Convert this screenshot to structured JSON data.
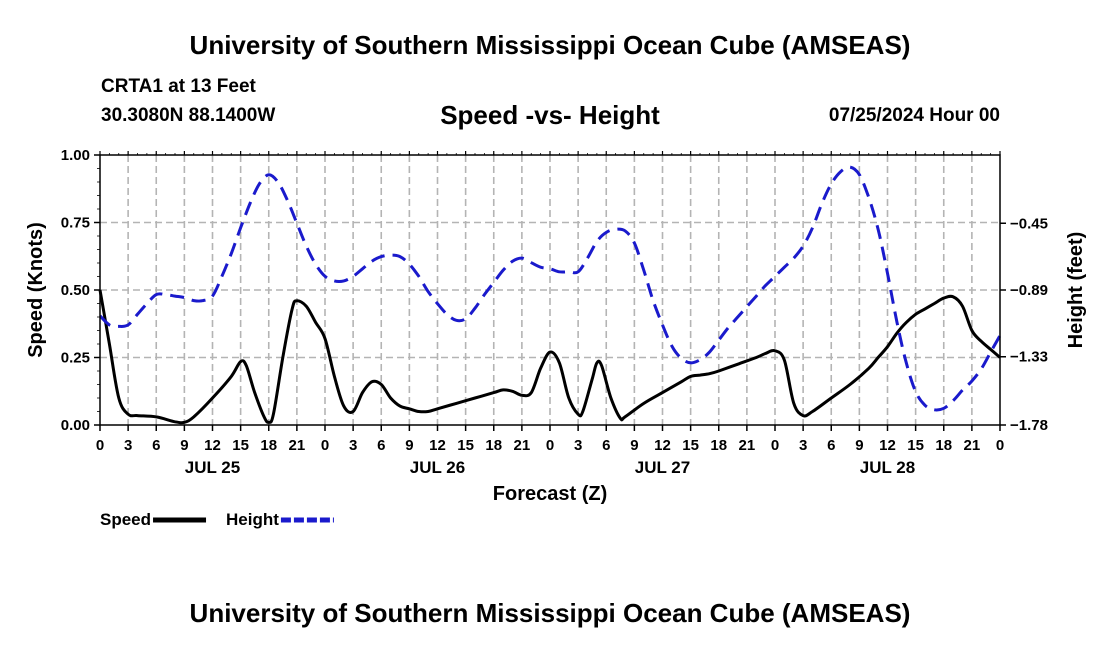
{
  "header": {
    "title": "University of Southern Mississippi Ocean Cube (AMSEAS)",
    "station": "CRTA1 at 13 Feet",
    "latlon": "30.3080N  88.1400W",
    "subtitle": "Speed -vs- Height",
    "datetime": "07/25/2024 Hour 00"
  },
  "footer": {
    "title": "University of Southern Mississippi Ocean Cube (AMSEAS)"
  },
  "chart_data": {
    "type": "line",
    "title": "Speed -vs- Height",
    "xlabel": "Forecast (Z)",
    "ylabel_left": "Speed (Knots)",
    "ylabel_right": "Height (feet)",
    "xlim": [
      0,
      96
    ],
    "ylim_left": [
      0,
      1.0
    ],
    "ylim_right": [
      -1.78,
      0
    ],
    "grid": true,
    "legend_placement": "bottom-left",
    "x_tick_values": [
      0,
      3,
      6,
      9,
      12,
      15,
      18,
      21,
      24,
      27,
      30,
      33,
      36,
      39,
      42,
      45,
      48,
      51,
      54,
      57,
      60,
      63,
      66,
      69,
      72,
      75,
      78,
      81,
      84,
      87,
      90,
      93,
      96
    ],
    "x_tick_labels": [
      "0",
      "3",
      "6",
      "9",
      "12",
      "15",
      "18",
      "21",
      "0",
      "3",
      "6",
      "9",
      "12",
      "15",
      "18",
      "21",
      "0",
      "3",
      "6",
      "9",
      "12",
      "15",
      "18",
      "21",
      "0",
      "3",
      "6",
      "9",
      "12",
      "15",
      "18",
      "21",
      "0"
    ],
    "day_labels": [
      {
        "label": "JUL 25",
        "x": 12
      },
      {
        "label": "JUL 26",
        "x": 36
      },
      {
        "label": "JUL 27",
        "x": 60
      },
      {
        "label": "JUL 28",
        "x": 84
      }
    ],
    "y_left_ticks": [
      0.0,
      0.25,
      0.5,
      0.75,
      1.0
    ],
    "y_left_tick_labels": [
      "0.00",
      "0.25",
      "0.50",
      "0.75",
      "1.00"
    ],
    "y_right_ticks": [
      -1.78,
      -1.33,
      -0.89,
      -0.45
    ],
    "y_right_tick_labels": [
      "−1.78",
      "−1.33",
      "−0.89",
      "−0.45"
    ],
    "series": [
      {
        "name": "Speed",
        "axis": "left",
        "color": "#000000",
        "dash": "solid",
        "points": [
          [
            0,
            0.5
          ],
          [
            1,
            0.3
          ],
          [
            2,
            0.1
          ],
          [
            3,
            0.04
          ],
          [
            4,
            0.035
          ],
          [
            6,
            0.03
          ],
          [
            8,
            0.012
          ],
          [
            9,
            0.01
          ],
          [
            10,
            0.03
          ],
          [
            12,
            0.1
          ],
          [
            14,
            0.18
          ],
          [
            15,
            0.235
          ],
          [
            15.6,
            0.22
          ],
          [
            16.5,
            0.12
          ],
          [
            17.5,
            0.03
          ],
          [
            18,
            0.01
          ],
          [
            18.5,
            0.04
          ],
          [
            19.5,
            0.25
          ],
          [
            20.5,
            0.43
          ],
          [
            21,
            0.46
          ],
          [
            22,
            0.44
          ],
          [
            23,
            0.38
          ],
          [
            24,
            0.32
          ],
          [
            25,
            0.18
          ],
          [
            26,
            0.07
          ],
          [
            27,
            0.05
          ],
          [
            28,
            0.12
          ],
          [
            29,
            0.16
          ],
          [
            30,
            0.15
          ],
          [
            31,
            0.1
          ],
          [
            32,
            0.07
          ],
          [
            33,
            0.06
          ],
          [
            34,
            0.05
          ],
          [
            35,
            0.05
          ],
          [
            36,
            0.06
          ],
          [
            38,
            0.08
          ],
          [
            40,
            0.1
          ],
          [
            42,
            0.12
          ],
          [
            43,
            0.13
          ],
          [
            44,
            0.125
          ],
          [
            45,
            0.11
          ],
          [
            46,
            0.12
          ],
          [
            47,
            0.21
          ],
          [
            48,
            0.27
          ],
          [
            49,
            0.23
          ],
          [
            50,
            0.1
          ],
          [
            51,
            0.04
          ],
          [
            51.5,
            0.05
          ],
          [
            52.5,
            0.17
          ],
          [
            53,
            0.23
          ],
          [
            53.5,
            0.22
          ],
          [
            54.5,
            0.1
          ],
          [
            55.5,
            0.025
          ],
          [
            56,
            0.03
          ],
          [
            58,
            0.08
          ],
          [
            60,
            0.12
          ],
          [
            62,
            0.16
          ],
          [
            63,
            0.18
          ],
          [
            64,
            0.185
          ],
          [
            65,
            0.19
          ],
          [
            66,
            0.2
          ],
          [
            68,
            0.225
          ],
          [
            70,
            0.25
          ],
          [
            71,
            0.265
          ],
          [
            72,
            0.275
          ],
          [
            73,
            0.24
          ],
          [
            74,
            0.08
          ],
          [
            75,
            0.035
          ],
          [
            76,
            0.05
          ],
          [
            78,
            0.1
          ],
          [
            80,
            0.15
          ],
          [
            82,
            0.21
          ],
          [
            83,
            0.25
          ],
          [
            84,
            0.29
          ],
          [
            85,
            0.34
          ],
          [
            86,
            0.38
          ],
          [
            87,
            0.41
          ],
          [
            88,
            0.43
          ],
          [
            89,
            0.45
          ],
          [
            90,
            0.47
          ],
          [
            91,
            0.475
          ],
          [
            92,
            0.44
          ],
          [
            93,
            0.35
          ],
          [
            94,
            0.31
          ],
          [
            95,
            0.28
          ],
          [
            96,
            0.25
          ]
        ]
      },
      {
        "name": "Height",
        "axis": "right",
        "color": "#1a1acc",
        "dash": "dashed",
        "points": [
          [
            0,
            -1.06
          ],
          [
            1,
            -1.12
          ],
          [
            2,
            -1.13
          ],
          [
            3,
            -1.12
          ],
          [
            4,
            -1.05
          ],
          [
            5,
            -0.98
          ],
          [
            6,
            -0.92
          ],
          [
            7,
            -0.92
          ],
          [
            8,
            -0.93
          ],
          [
            9,
            -0.94
          ],
          [
            10,
            -0.96
          ],
          [
            11,
            -0.96
          ],
          [
            12,
            -0.93
          ],
          [
            13,
            -0.8
          ],
          [
            14,
            -0.65
          ],
          [
            15,
            -0.48
          ],
          [
            16,
            -0.32
          ],
          [
            17,
            -0.19
          ],
          [
            18,
            -0.13
          ],
          [
            19,
            -0.18
          ],
          [
            20,
            -0.3
          ],
          [
            21,
            -0.45
          ],
          [
            22,
            -0.6
          ],
          [
            23,
            -0.72
          ],
          [
            24,
            -0.8
          ],
          [
            25,
            -0.83
          ],
          [
            26,
            -0.83
          ],
          [
            27,
            -0.8
          ],
          [
            28,
            -0.75
          ],
          [
            29,
            -0.7
          ],
          [
            30,
            -0.67
          ],
          [
            31,
            -0.66
          ],
          [
            32,
            -0.67
          ],
          [
            33,
            -0.72
          ],
          [
            34,
            -0.8
          ],
          [
            35,
            -0.9
          ],
          [
            36,
            -0.98
          ],
          [
            37,
            -1.05
          ],
          [
            38,
            -1.09
          ],
          [
            39,
            -1.08
          ],
          [
            40,
            -1.01
          ],
          [
            41,
            -0.92
          ],
          [
            42,
            -0.84
          ],
          [
            43,
            -0.76
          ],
          [
            44,
            -0.7
          ],
          [
            45,
            -0.68
          ],
          [
            46,
            -0.71
          ],
          [
            47,
            -0.74
          ],
          [
            48,
            -0.75
          ],
          [
            49,
            -0.77
          ],
          [
            50,
            -0.77
          ],
          [
            51,
            -0.77
          ],
          [
            52,
            -0.68
          ],
          [
            53,
            -0.57
          ],
          [
            54,
            -0.51
          ],
          [
            55,
            -0.49
          ],
          [
            56,
            -0.5
          ],
          [
            57,
            -0.58
          ],
          [
            58,
            -0.76
          ],
          [
            59,
            -0.96
          ],
          [
            60,
            -1.12
          ],
          [
            61,
            -1.26
          ],
          [
            62,
            -1.34
          ],
          [
            63,
            -1.37
          ],
          [
            64,
            -1.35
          ],
          [
            65,
            -1.3
          ],
          [
            66,
            -1.22
          ],
          [
            67,
            -1.14
          ],
          [
            68,
            -1.07
          ],
          [
            69,
            -1.0
          ],
          [
            70,
            -0.93
          ],
          [
            71,
            -0.86
          ],
          [
            72,
            -0.8
          ],
          [
            73,
            -0.74
          ],
          [
            74,
            -0.68
          ],
          [
            75,
            -0.6
          ],
          [
            76,
            -0.48
          ],
          [
            77,
            -0.32
          ],
          [
            78,
            -0.19
          ],
          [
            79,
            -0.11
          ],
          [
            80,
            -0.08
          ],
          [
            81,
            -0.13
          ],
          [
            82,
            -0.28
          ],
          [
            83,
            -0.49
          ],
          [
            84,
            -0.78
          ],
          [
            85,
            -1.1
          ],
          [
            86,
            -1.37
          ],
          [
            87,
            -1.56
          ],
          [
            88,
            -1.65
          ],
          [
            89,
            -1.68
          ],
          [
            90,
            -1.67
          ],
          [
            91,
            -1.62
          ],
          [
            92,
            -1.55
          ],
          [
            93,
            -1.49
          ],
          [
            94,
            -1.41
          ],
          [
            95,
            -1.3
          ],
          [
            96,
            -1.19
          ]
        ]
      }
    ]
  }
}
